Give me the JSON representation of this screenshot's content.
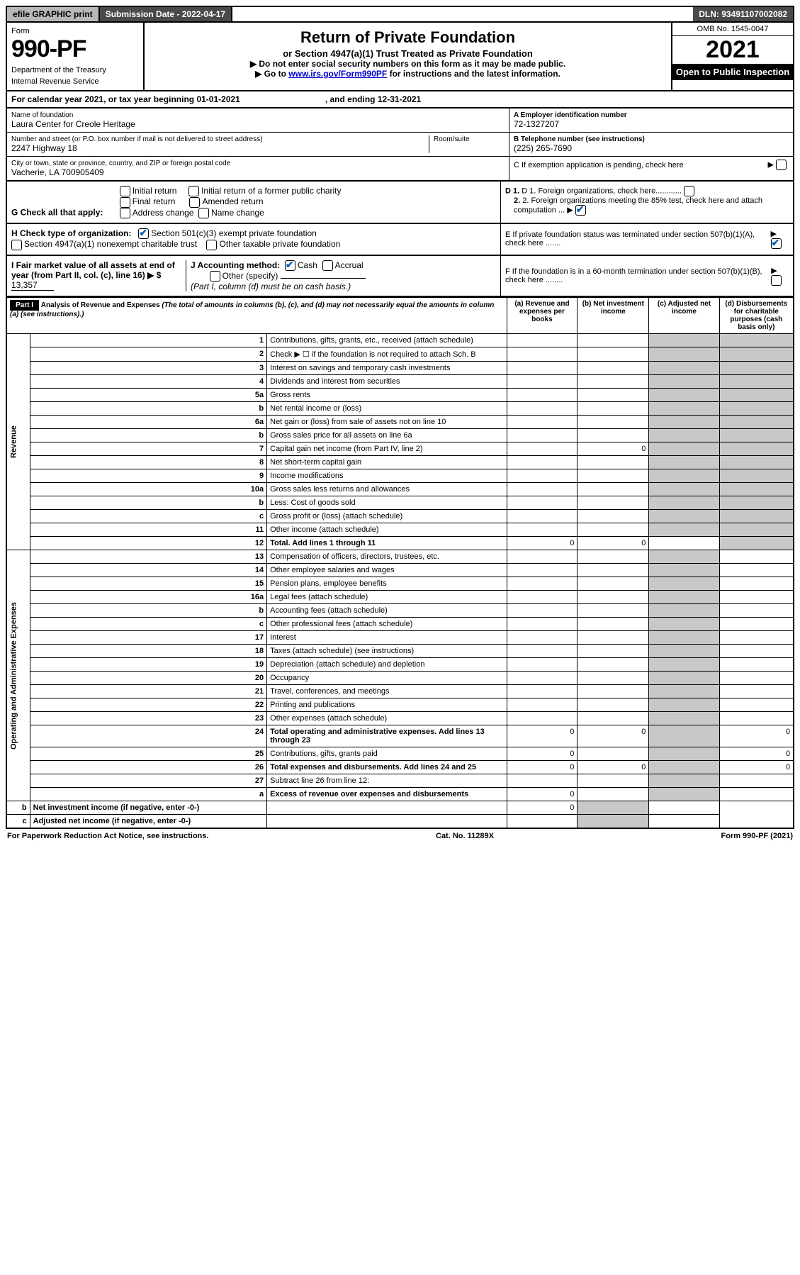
{
  "topbar": {
    "efile": "efile GRAPHIC print",
    "sub_label": "Submission Date - ",
    "sub_date": "2022-04-17",
    "dln_label": "DLN: ",
    "dln": "93491107002082"
  },
  "header": {
    "form_word": "Form",
    "form_num": "990-PF",
    "dept": "Department of the Treasury",
    "irs": "Internal Revenue Service",
    "title": "Return of Private Foundation",
    "subtitle": "or Section 4947(a)(1) Trust Treated as Private Foundation",
    "warn1": "▶ Do not enter social security numbers on this form as it may be made public.",
    "warn2_pre": "▶ Go to ",
    "warn2_link": "www.irs.gov/Form990PF",
    "warn2_post": " for instructions and the latest information.",
    "omb": "OMB No. 1545-0047",
    "year": "2021",
    "inspect": "Open to Public Inspection"
  },
  "cy": {
    "pre": "For calendar year 2021, or tax year beginning ",
    "begin": "01-01-2021",
    "mid": ", and ending ",
    "end": "12-31-2021"
  },
  "name": {
    "lbl_name": "Name of foundation",
    "name": "Laura Center for Creole Heritage",
    "lbl_addr": "Number and street (or P.O. box number if mail is not delivered to street address)",
    "room": "Room/suite",
    "addr": "2247 Highway 18",
    "lbl_city": "City or town, state or province, country, and ZIP or foreign postal code",
    "city": "Vacherie, LA  700905409",
    "lbl_ein": "A Employer identification number",
    "ein": "72-1327207",
    "lbl_tel": "B Telephone number (see instructions)",
    "tel": "(225) 265-7690",
    "lbl_c": "C If exemption application is pending, check here"
  },
  "g": {
    "lbl": "G Check all that apply:",
    "opts": [
      "Initial return",
      "Final return",
      "Address change",
      "Initial return of a former public charity",
      "Amended return",
      "Name change"
    ]
  },
  "d": {
    "d1": "D 1. Foreign organizations, check here............",
    "d2": "2. Foreign organizations meeting the 85% test, check here and attach computation ..."
  },
  "e": "E  If private foundation status was terminated under section 507(b)(1)(A), check here .......",
  "h": {
    "lbl": "H Check type of organization:",
    "o1": "Section 501(c)(3) exempt private foundation",
    "o2": "Section 4947(a)(1) nonexempt charitable trust",
    "o3": "Other taxable private foundation"
  },
  "i": {
    "lbl": "I Fair market value of all assets at end of year (from Part II, col. (c), line 16) ▶ $",
    "val": "13,357"
  },
  "j": {
    "lbl": "J Accounting method:",
    "o1": "Cash",
    "o2": "Accrual",
    "o3": "Other (specify)",
    "note": "(Part I, column (d) must be on cash basis.)"
  },
  "f": "F  If the foundation is in a 60-month termination under section 507(b)(1)(B), check here ........",
  "part1": {
    "lbl": "Part I",
    "title": "Analysis of Revenue and Expenses",
    "note": "(The total of amounts in columns (b), (c), and (d) may not necessarily equal the amounts in column (a) (see instructions).)",
    "cols": {
      "a": "(a) Revenue and expenses per books",
      "b": "(b) Net investment income",
      "c": "(c) Adjusted net income",
      "d": "(d) Disbursements for charitable purposes (cash basis only)"
    }
  },
  "sections": {
    "rev": "Revenue",
    "oae": "Operating and Administrative Expenses"
  },
  "rows": [
    {
      "n": "1",
      "d": "Contributions, gifts, grants, etc., received (attach schedule)"
    },
    {
      "n": "2",
      "d": "Check ▶ ☐ if the foundation is not required to attach Sch. B"
    },
    {
      "n": "3",
      "d": "Interest on savings and temporary cash investments"
    },
    {
      "n": "4",
      "d": "Dividends and interest from securities"
    },
    {
      "n": "5a",
      "d": "Gross rents"
    },
    {
      "n": "b",
      "d": "Net rental income or (loss)"
    },
    {
      "n": "6a",
      "d": "Net gain or (loss) from sale of assets not on line 10"
    },
    {
      "n": "b",
      "d": "Gross sales price for all assets on line 6a"
    },
    {
      "n": "7",
      "d": "Capital gain net income (from Part IV, line 2)",
      "b": "0"
    },
    {
      "n": "8",
      "d": "Net short-term capital gain"
    },
    {
      "n": "9",
      "d": "Income modifications"
    },
    {
      "n": "10a",
      "d": "Gross sales less returns and allowances"
    },
    {
      "n": "b",
      "d": "Less: Cost of goods sold"
    },
    {
      "n": "c",
      "d": "Gross profit or (loss) (attach schedule)"
    },
    {
      "n": "11",
      "d": "Other income (attach schedule)"
    },
    {
      "n": "12",
      "d": "Total. Add lines 1 through 11",
      "a": "0",
      "b": "0",
      "bold": true
    },
    {
      "n": "13",
      "d": "Compensation of officers, directors, trustees, etc."
    },
    {
      "n": "14",
      "d": "Other employee salaries and wages"
    },
    {
      "n": "15",
      "d": "Pension plans, employee benefits"
    },
    {
      "n": "16a",
      "d": "Legal fees (attach schedule)"
    },
    {
      "n": "b",
      "d": "Accounting fees (attach schedule)"
    },
    {
      "n": "c",
      "d": "Other professional fees (attach schedule)"
    },
    {
      "n": "17",
      "d": "Interest"
    },
    {
      "n": "18",
      "d": "Taxes (attach schedule) (see instructions)"
    },
    {
      "n": "19",
      "d": "Depreciation (attach schedule) and depletion"
    },
    {
      "n": "20",
      "d": "Occupancy"
    },
    {
      "n": "21",
      "d": "Travel, conferences, and meetings"
    },
    {
      "n": "22",
      "d": "Printing and publications"
    },
    {
      "n": "23",
      "d": "Other expenses (attach schedule)"
    },
    {
      "n": "24",
      "d": "Total operating and administrative expenses. Add lines 13 through 23",
      "a": "0",
      "b": "0",
      "dd": "0",
      "bold": true
    },
    {
      "n": "25",
      "d": "Contributions, gifts, grants paid",
      "a": "0",
      "dd": "0"
    },
    {
      "n": "26",
      "d": "Total expenses and disbursements. Add lines 24 and 25",
      "a": "0",
      "b": "0",
      "dd": "0",
      "bold": true
    },
    {
      "n": "27",
      "d": "Subtract line 26 from line 12:"
    },
    {
      "n": "a",
      "d": "Excess of revenue over expenses and disbursements",
      "a": "0",
      "bold": true
    },
    {
      "n": "b",
      "d": "Net investment income (if negative, enter -0-)",
      "b": "0",
      "bold": true
    },
    {
      "n": "c",
      "d": "Adjusted net income (if negative, enter -0-)",
      "bold": true
    }
  ],
  "foot": {
    "l": "For Paperwork Reduction Act Notice, see instructions.",
    "c": "Cat. No. 11289X",
    "r": "Form 990-PF (2021)"
  }
}
